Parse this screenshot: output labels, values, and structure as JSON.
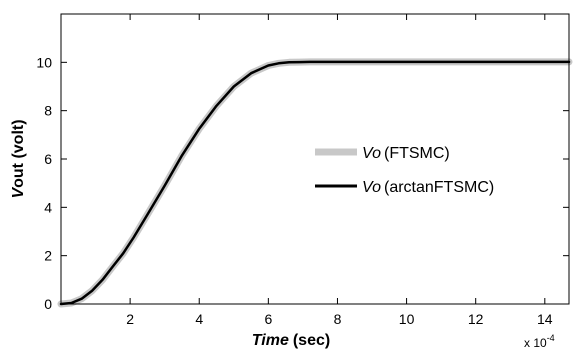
{
  "chart_data": {
    "type": "line",
    "xlabel_italic": "Time",
    "xlabel_rest": "(sec)",
    "ylabel_italic": "V",
    "ylabel_rest": "out (volt)",
    "x_multiplier": "x 10",
    "x_multiplier_exp": "-4",
    "xlim": [
      0,
      14.7
    ],
    "ylim": [
      0,
      12
    ],
    "xticks": [
      2,
      4,
      6,
      8,
      10,
      12,
      14
    ],
    "yticks": [
      0,
      2,
      4,
      6,
      8,
      10
    ],
    "grid": false,
    "legend_position": "center-right",
    "series": [
      {
        "name_italic": "Vo",
        "name_rest": "(FTSMC)",
        "color": "#c8c8c8",
        "x": [
          0,
          0.3,
          0.6,
          0.9,
          1.2,
          1.5,
          1.8,
          2.1,
          2.5,
          3.0,
          3.5,
          4.0,
          4.5,
          5.0,
          5.5,
          6.0,
          6.3,
          6.6,
          6.9,
          7.2,
          8,
          10,
          12,
          14.7
        ],
        "y": [
          0.0,
          0.04,
          0.22,
          0.55,
          1.0,
          1.55,
          2.1,
          2.75,
          3.7,
          4.9,
          6.15,
          7.25,
          8.2,
          9.0,
          9.55,
          9.87,
          9.96,
          10.0,
          10.01,
          10.02,
          10.02,
          10.02,
          10.02,
          10.02
        ]
      },
      {
        "name_italic": "Vo",
        "name_rest": "(arctanFTSMC)",
        "color": "#000000",
        "x": [
          0,
          0.3,
          0.6,
          0.9,
          1.2,
          1.5,
          1.8,
          2.1,
          2.5,
          3.0,
          3.5,
          4.0,
          4.5,
          5.0,
          5.5,
          6.0,
          6.3,
          6.6,
          6.9,
          7.2,
          8,
          10,
          12,
          14.7
        ],
        "y": [
          0.0,
          0.04,
          0.22,
          0.55,
          1.0,
          1.55,
          2.1,
          2.75,
          3.7,
          4.9,
          6.15,
          7.25,
          8.2,
          9.0,
          9.55,
          9.87,
          9.96,
          10.0,
          10.01,
          10.02,
          10.02,
          10.02,
          10.02,
          10.02
        ]
      }
    ]
  }
}
